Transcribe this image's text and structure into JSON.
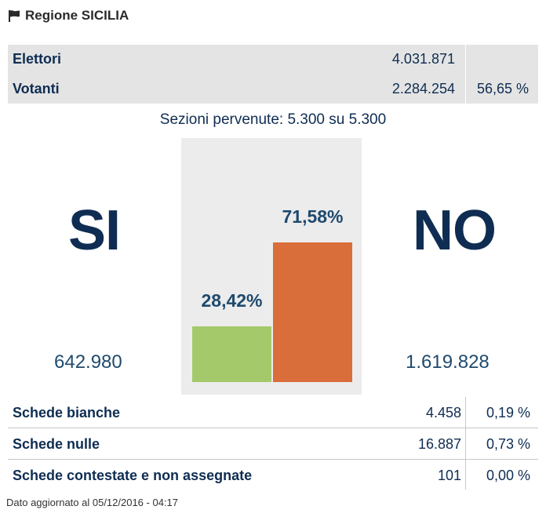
{
  "header": {
    "icon": "flag-icon",
    "title": "Regione SICILIA"
  },
  "summary": {
    "elettori": {
      "label": "Elettori",
      "value": "4.031.871"
    },
    "votanti": {
      "label": "Votanti",
      "value": "2.284.254",
      "pct": "56,65 %"
    }
  },
  "sezioni": "Sezioni pervenute: 5.300 su 5.300",
  "result": {
    "si": {
      "label": "SI",
      "votes": "642.980",
      "pct_label": "28,42%"
    },
    "no": {
      "label": "NO",
      "votes": "1.619.828",
      "pct_label": "71,58%"
    }
  },
  "chart_data": {
    "type": "bar",
    "categories": [
      "SI",
      "NO"
    ],
    "values": [
      28.42,
      71.58
    ],
    "ylim": [
      0,
      100
    ],
    "colors": [
      "#a4c96a",
      "#d96e3a"
    ]
  },
  "schede": [
    {
      "label": "Schede bianche",
      "value": "4.458",
      "pct": "0,19 %"
    },
    {
      "label": "Schede nulle",
      "value": "16.887",
      "pct": "0,73 %"
    },
    {
      "label": "Schede contestate e non assegnate",
      "value": "101",
      "pct": "0,00 %"
    }
  ],
  "footer": "Dato aggiornato al 05/12/2016 - 04:17"
}
